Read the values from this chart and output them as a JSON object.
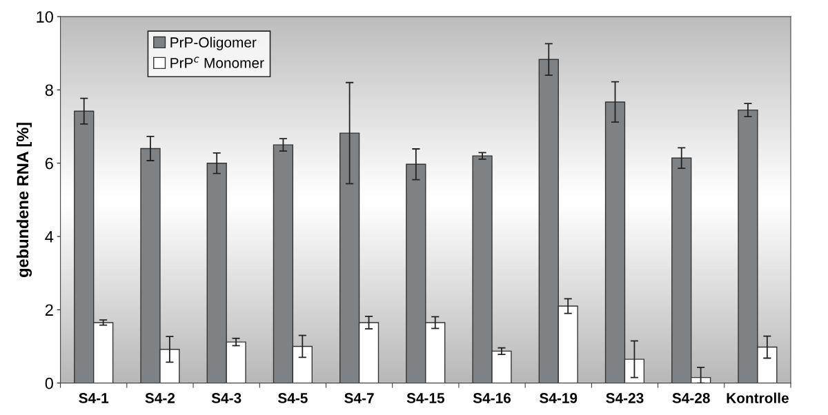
{
  "chart_data": {
    "type": "bar",
    "ylabel": "gebundene RNA [%]",
    "categories": [
      "S4-1",
      "S4-2",
      "S4-3",
      "S4-5",
      "S4-7",
      "S4-15",
      "S4-16",
      "S4-19",
      "S4-23",
      "S4-28",
      "Kontrolle"
    ],
    "series": [
      {
        "name": "PrP-Oligomer",
        "color": "#7f8285",
        "values": [
          7.42,
          6.4,
          6.0,
          6.5,
          6.82,
          5.97,
          6.2,
          8.83,
          7.67,
          6.14,
          7.45
        ],
        "errors": [
          [
            7.07,
            7.77
          ],
          [
            6.07,
            6.73
          ],
          [
            5.72,
            6.28
          ],
          [
            6.33,
            6.67
          ],
          [
            5.44,
            8.2
          ],
          [
            5.55,
            6.39
          ],
          [
            6.11,
            6.29
          ],
          [
            8.4,
            9.26
          ],
          [
            7.12,
            8.22
          ],
          [
            5.86,
            6.42
          ],
          [
            7.27,
            7.63
          ]
        ]
      },
      {
        "name": "PrP$^{c}$ Monomer",
        "color": "#ffffff",
        "values": [
          1.65,
          0.92,
          1.12,
          1.0,
          1.65,
          1.65,
          0.87,
          2.1,
          0.65,
          0.15,
          0.98
        ],
        "errors": [
          [
            1.58,
            1.72
          ],
          [
            0.57,
            1.27
          ],
          [
            1.02,
            1.22
          ],
          [
            0.7,
            1.3
          ],
          [
            1.48,
            1.82
          ],
          [
            1.49,
            1.81
          ],
          [
            0.78,
            0.96
          ],
          [
            1.9,
            2.3
          ],
          [
            0.15,
            1.15
          ],
          [
            0.0,
            0.43
          ],
          [
            0.68,
            1.28
          ]
        ]
      }
    ],
    "ylim": [
      0,
      10
    ],
    "yticks": [
      0,
      2,
      4,
      6,
      8,
      10
    ],
    "grid": false,
    "legend": "top left"
  }
}
